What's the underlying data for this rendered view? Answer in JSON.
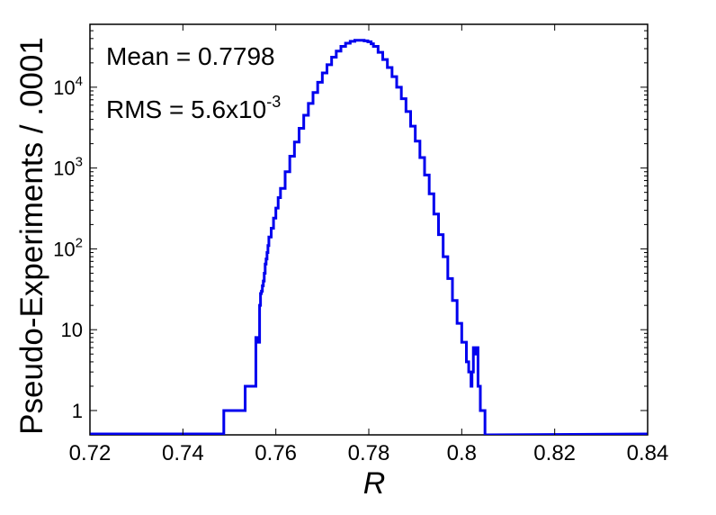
{
  "chart_data": {
    "type": "line",
    "xlabel": "R",
    "ylabel": "Pseudo-Experiments / .0001",
    "xlim": [
      0.72,
      0.84
    ],
    "ylim": [
      0.5,
      60000
    ],
    "yscale": "log",
    "grid": false,
    "x_ticks": [
      "0.72",
      "0.74",
      "0.76",
      "0.78",
      "0.8",
      "0.82",
      "0.84"
    ],
    "y_ticks": [
      {
        "value": 1,
        "base": "1",
        "exp": ""
      },
      {
        "value": 10,
        "base": "10",
        "exp": ""
      },
      {
        "value": 100,
        "base": "10",
        "exp": "2"
      },
      {
        "value": 1000,
        "base": "10",
        "exp": "3"
      },
      {
        "value": 10000,
        "base": "10",
        "exp": "4"
      }
    ],
    "annotations": {
      "mean": "Mean = 0.7798",
      "rms_base": "RMS = 5.6x10",
      "rms_exp": "-3"
    },
    "series_color": "#0000ee",
    "series": [
      {
        "x": [
          0.7488,
          0.7489,
          0.7526,
          0.7529,
          0.7532,
          0.7534,
          0.7555,
          0.7557,
          0.7559,
          0.7561,
          0.7563,
          0.7565,
          0.7567,
          0.7569,
          0.7571,
          0.7573,
          0.7575,
          0.7577,
          0.7579,
          0.7581,
          0.7583,
          0.7585,
          0.759,
          0.7595,
          0.76,
          0.7605,
          0.761,
          0.762,
          0.763,
          0.764,
          0.765,
          0.766,
          0.767,
          0.768,
          0.769,
          0.77,
          0.771,
          0.772,
          0.773,
          0.774,
          0.775,
          0.776,
          0.777,
          0.778,
          0.779,
          0.7798,
          0.7805,
          0.781,
          0.782,
          0.783,
          0.784,
          0.785,
          0.786,
          0.787,
          0.788,
          0.789,
          0.79,
          0.791,
          0.792,
          0.793,
          0.794,
          0.795,
          0.796,
          0.797,
          0.798,
          0.799,
          0.8,
          0.801,
          0.8015,
          0.802,
          0.8022,
          0.8025,
          0.8028,
          0.803,
          0.8035,
          0.804,
          0.8045,
          0.805
        ],
        "y": [
          1,
          1,
          1,
          1,
          1,
          2,
          2,
          8,
          7,
          8,
          7,
          20,
          28,
          30,
          35,
          40,
          50,
          65,
          75,
          90,
          110,
          140,
          180,
          240,
          320,
          430,
          560,
          900,
          1400,
          2100,
          3100,
          4500,
          6300,
          8600,
          11500,
          15000,
          19000,
          23500,
          28000,
          32000,
          35000,
          37000,
          38000,
          38000,
          37500,
          36500,
          34500,
          32000,
          27000,
          22000,
          17500,
          13500,
          10000,
          7200,
          5000,
          3300,
          2150,
          1350,
          820,
          480,
          270,
          150,
          80,
          43,
          23,
          12,
          7,
          4,
          3,
          2,
          3,
          6,
          5,
          6,
          2,
          1,
          1,
          0.5
        ]
      }
    ]
  }
}
